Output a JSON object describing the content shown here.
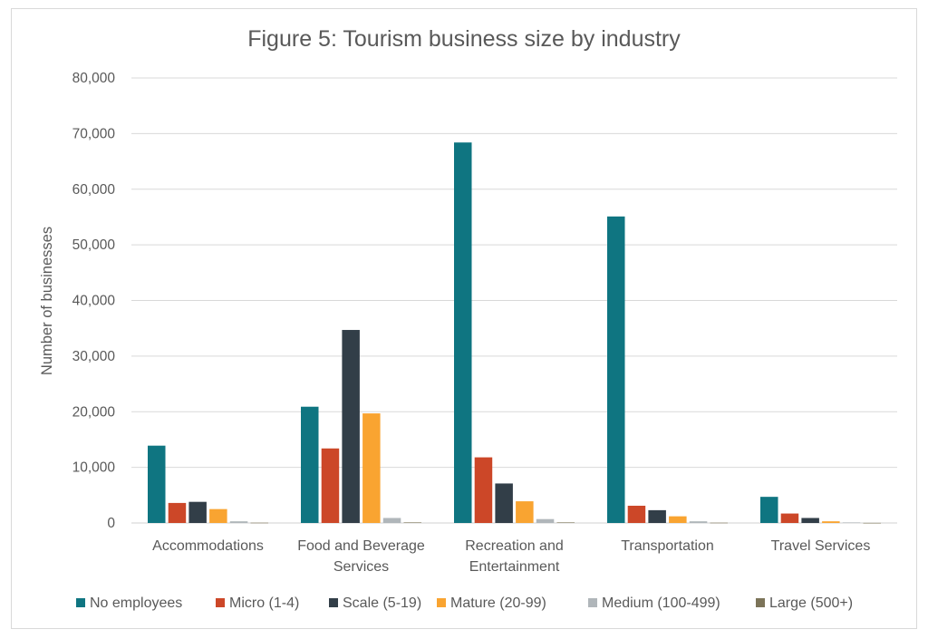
{
  "chart_data": {
    "type": "bar",
    "title": "Figure 5: Tourism business size by industry",
    "xlabel": "",
    "ylabel": "Number of businesses",
    "ylim": [
      0,
      80000
    ],
    "y_ticks": [
      0,
      10000,
      20000,
      30000,
      40000,
      50000,
      60000,
      70000,
      80000
    ],
    "y_tick_labels": [
      "0",
      "10,000",
      "20,000",
      "30,000",
      "40,000",
      "50,000",
      "60,000",
      "70,000",
      "80,000"
    ],
    "grid": true,
    "legend_position": "bottom",
    "categories": [
      [
        "Accommodations"
      ],
      [
        "Food and Beverage",
        "Services"
      ],
      [
        "Recreation and",
        "Entertainment"
      ],
      [
        "Transportation"
      ],
      [
        "Travel Services"
      ]
    ],
    "series": [
      {
        "name": "No employees",
        "color": "#0f7581",
        "values": [
          13900,
          20900,
          68400,
          55100,
          4700
        ]
      },
      {
        "name": "Micro (1-4)",
        "color": "#cc4728",
        "values": [
          3600,
          13400,
          11800,
          3100,
          1700
        ]
      },
      {
        "name": "Scale (5-19)",
        "color": "#323e48",
        "values": [
          3800,
          34700,
          7100,
          2300,
          900
        ]
      },
      {
        "name": "Mature (20-99)",
        "color": "#f9a431",
        "values": [
          2500,
          19700,
          3900,
          1200,
          300
        ]
      },
      {
        "name": "Medium (100-499)",
        "color": "#b0b6ba",
        "values": [
          300,
          900,
          700,
          300,
          100
        ]
      },
      {
        "name": "Large (500+)",
        "color": "#7c7459",
        "values": [
          50,
          100,
          100,
          50,
          20
        ]
      }
    ]
  }
}
